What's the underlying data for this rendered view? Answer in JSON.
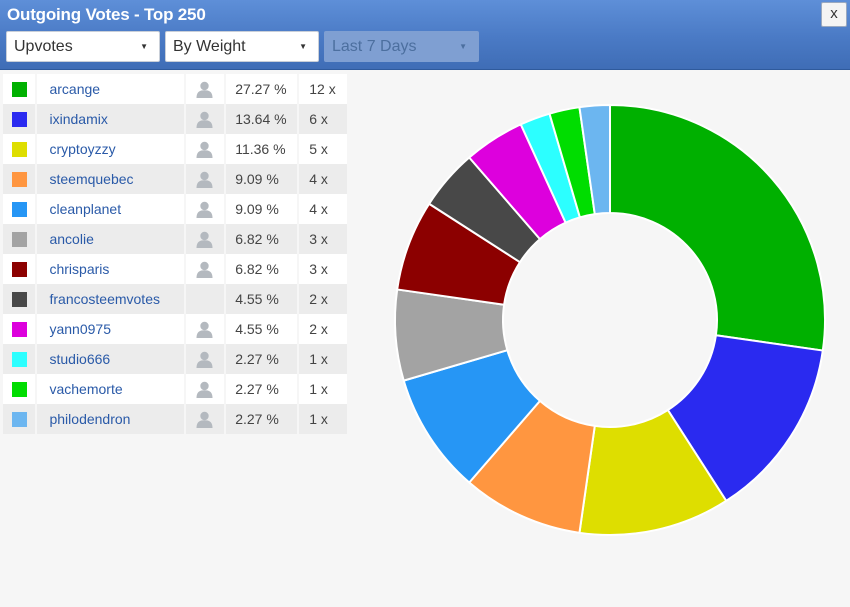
{
  "title": "Outgoing Votes - Top 250",
  "close_label": "x",
  "filters": {
    "type": "Upvotes",
    "order": "By Weight",
    "period": "Last 7 Days"
  },
  "rows": [
    {
      "name": "arcange",
      "color": "#00b000",
      "percent": "27.27 %",
      "count": "12 x",
      "pct_value": 27.27,
      "has_profile": true
    },
    {
      "name": "ixindamix",
      "color": "#2a2af0",
      "percent": "13.64 %",
      "count": "6 x",
      "pct_value": 13.64,
      "has_profile": true
    },
    {
      "name": "cryptoyzzy",
      "color": "#dede00",
      "percent": "11.36 %",
      "count": "5 x",
      "pct_value": 11.36,
      "has_profile": true
    },
    {
      "name": "steemquebec",
      "color": "#ff9640",
      "percent": "9.09 %",
      "count": "4 x",
      "pct_value": 9.09,
      "has_profile": true
    },
    {
      "name": "cleanplanet",
      "color": "#2696f5",
      "percent": "9.09 %",
      "count": "4 x",
      "pct_value": 9.09,
      "has_profile": true
    },
    {
      "name": "ancolie",
      "color": "#a3a3a3",
      "percent": "6.82 %",
      "count": "3 x",
      "pct_value": 6.82,
      "has_profile": true
    },
    {
      "name": "chrisparis",
      "color": "#8c0000",
      "percent": "6.82 %",
      "count": "3 x",
      "pct_value": 6.82,
      "has_profile": true
    },
    {
      "name": "francosteemvotes",
      "color": "#484848",
      "percent": "4.55 %",
      "count": "2 x",
      "pct_value": 4.55,
      "has_profile": false
    },
    {
      "name": "yann0975",
      "color": "#dd00dd",
      "percent": "4.55 %",
      "count": "2 x",
      "pct_value": 4.55,
      "has_profile": true
    },
    {
      "name": "studio666",
      "color": "#2cffff",
      "percent": "2.27 %",
      "count": "1 x",
      "pct_value": 2.27,
      "has_profile": true
    },
    {
      "name": "vachemorte",
      "color": "#00dd00",
      "percent": "2.27 %",
      "count": "1 x",
      "pct_value": 2.27,
      "has_profile": true
    },
    {
      "name": "philodendron",
      "color": "#6cb6f0",
      "percent": "2.27 %",
      "count": "1 x",
      "pct_value": 2.27,
      "has_profile": true
    }
  ],
  "icons": {
    "profile": "user-icon",
    "dropdown": "caret-down-icon"
  },
  "chart_data": {
    "type": "pie",
    "donut": true,
    "labels": [
      "arcange",
      "ixindamix",
      "cryptoyzzy",
      "steemquebec",
      "cleanplanet",
      "ancolie",
      "chrisparis",
      "francosteemvotes",
      "yann0975",
      "studio666",
      "vachemorte",
      "philodendron"
    ],
    "values": [
      27.27,
      13.64,
      11.36,
      9.09,
      9.09,
      6.82,
      6.82,
      4.55,
      4.55,
      2.27,
      2.27,
      2.27
    ],
    "colors": [
      "#00b000",
      "#2a2af0",
      "#dede00",
      "#ff9640",
      "#2696f5",
      "#a3a3a3",
      "#8c0000",
      "#484848",
      "#dd00dd",
      "#2cffff",
      "#00dd00",
      "#6cb6f0"
    ],
    "start": "top, clockwise",
    "legend": "table-left"
  }
}
